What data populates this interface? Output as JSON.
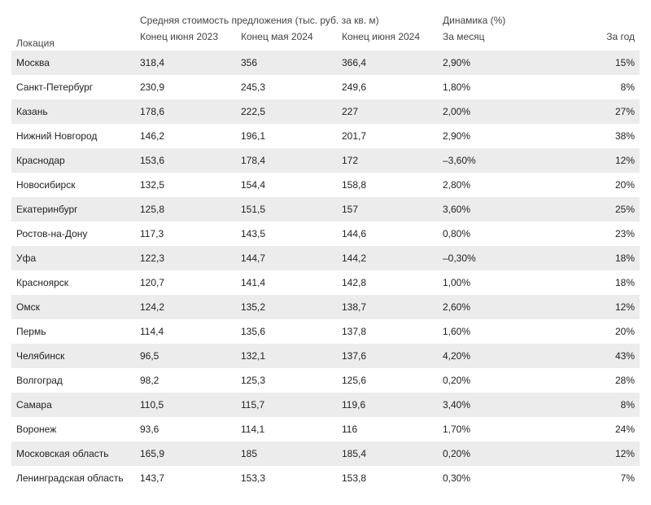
{
  "table": {
    "headers": {
      "location": "Локация",
      "price_group": "Средняя стоимость предложения (тыс. руб. за кв. м)",
      "dyn_group": "Динамика (%)",
      "p1": "Конец июня 2023",
      "p2": "Конец мая 2024",
      "p3": "Конец июня 2024",
      "dm": "За месяц",
      "dy": "За год"
    },
    "rows": [
      {
        "loc": "Москва",
        "p1": "318,4",
        "p2": "356",
        "p3": "366,4",
        "dm": "2,90%",
        "dy": "15%"
      },
      {
        "loc": "Санкт-Петербург",
        "p1": "230,9",
        "p2": "245,3",
        "p3": "249,6",
        "dm": "1,80%",
        "dy": "8%"
      },
      {
        "loc": "Казань",
        "p1": "178,6",
        "p2": "222,5",
        "p3": "227",
        "dm": "2,00%",
        "dy": "27%"
      },
      {
        "loc": "Нижний Новгород",
        "p1": "146,2",
        "p2": "196,1",
        "p3": "201,7",
        "dm": "2,90%",
        "dy": "38%"
      },
      {
        "loc": "Краснодар",
        "p1": "153,6",
        "p2": "178,4",
        "p3": "172",
        "dm": "–3,60%",
        "dy": "12%"
      },
      {
        "loc": "Новосибирск",
        "p1": "132,5",
        "p2": "154,4",
        "p3": "158,8",
        "dm": "2,80%",
        "dy": "20%"
      },
      {
        "loc": "Екатеринбург",
        "p1": "125,8",
        "p2": "151,5",
        "p3": "157",
        "dm": "3,60%",
        "dy": "25%"
      },
      {
        "loc": "Ростов-на-Дону",
        "p1": "117,3",
        "p2": "143,5",
        "p3": "144,6",
        "dm": "0,80%",
        "dy": "23%"
      },
      {
        "loc": "Уфа",
        "p1": "122,3",
        "p2": "144,7",
        "p3": "144,2",
        "dm": "–0,30%",
        "dy": "18%"
      },
      {
        "loc": "Красноярск",
        "p1": "120,7",
        "p2": "141,4",
        "p3": "142,8",
        "dm": "1,00%",
        "dy": "18%"
      },
      {
        "loc": "Омск",
        "p1": "124,2",
        "p2": "135,2",
        "p3": "138,7",
        "dm": "2,60%",
        "dy": "12%"
      },
      {
        "loc": "Пермь",
        "p1": "114,4",
        "p2": "135,6",
        "p3": "137,8",
        "dm": "1,60%",
        "dy": "20%"
      },
      {
        "loc": "Челябинск",
        "p1": "96,5",
        "p2": "132,1",
        "p3": "137,6",
        "dm": "4,20%",
        "dy": "43%"
      },
      {
        "loc": "Волгоград",
        "p1": "98,2",
        "p2": "125,3",
        "p3": "125,6",
        "dm": "0,20%",
        "dy": "28%"
      },
      {
        "loc": "Самара",
        "p1": "110,5",
        "p2": "115,7",
        "p3": "119,6",
        "dm": "3,40%",
        "dy": "8%"
      },
      {
        "loc": "Воронеж",
        "p1": "93,6",
        "p2": "114,1",
        "p3": "116",
        "dm": "1,70%",
        "dy": "24%"
      },
      {
        "loc": "Московская область",
        "p1": "165,9",
        "p2": "185",
        "p3": "185,4",
        "dm": "0,20%",
        "dy": "12%"
      },
      {
        "loc": "Ленинградская область",
        "p1": "143,7",
        "p2": "153,3",
        "p3": "153,8",
        "dm": "0,30%",
        "dy": "7%"
      }
    ]
  }
}
